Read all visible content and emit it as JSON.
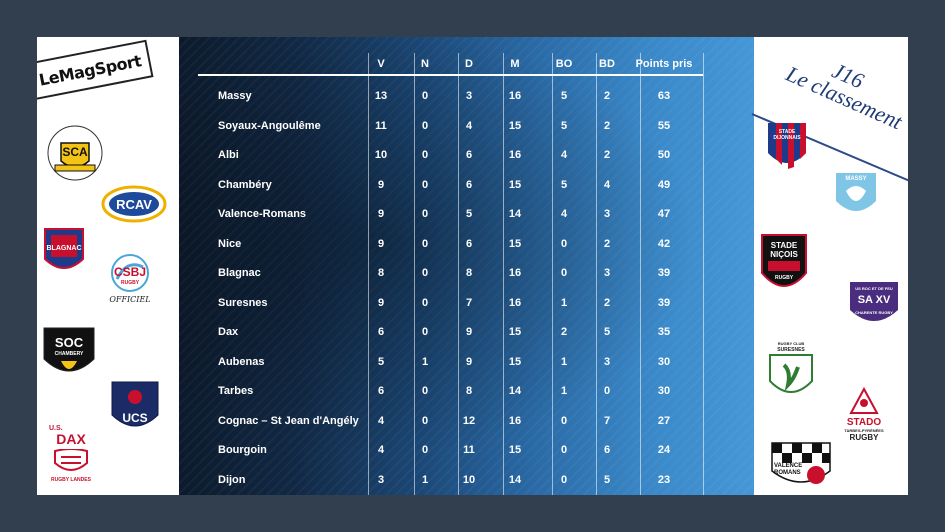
{
  "left_logos": {
    "magsport": "LeMagSport",
    "albi": {
      "ring": "SPORTING CLUB ALBIGEOIS",
      "abbr": "SCA"
    },
    "rcav": "RCAV",
    "blagnac": "BLAGNAC",
    "csbj": {
      "abbr": "CSBJ",
      "sub": "RUGBY",
      "tag": "OFFICIEL"
    },
    "soc": {
      "abbr": "SOC",
      "sub": "CHAMBERY"
    },
    "ucs": "UCS",
    "dax": {
      "top": "U.S.",
      "abbr": "DAX",
      "sub": "RUGBY LANDES"
    }
  },
  "right_header": {
    "round": "J16",
    "title": "Le classement"
  },
  "right_logos": {
    "dijon": {
      "line1": "STADE",
      "line2": "DIJONNAIS"
    },
    "massy": "MASSY",
    "nice": {
      "line1": "STADE",
      "line2": "NIÇOIS",
      "sub": "RUGBY"
    },
    "saxv": {
      "top": "US ROC ET DE FEU",
      "abbr": "SA XV",
      "sub": "CHARENTE RUGBY"
    },
    "suresnes": {
      "top": "RUGBY CLUB",
      "name": "SURESNES"
    },
    "tarbes": {
      "line1": "STADO",
      "line2": "TARBES-PYRÉNÉES",
      "line3": "RUGBY"
    },
    "valence": {
      "line1": "VALENCE",
      "line2": "ROMANS"
    }
  },
  "table": {
    "columns": [
      "V",
      "N",
      "D",
      "M",
      "BO",
      "BD",
      "Points pris"
    ],
    "rows": [
      {
        "team": "Massy",
        "values": [
          "13",
          "0",
          "3",
          "16",
          "5",
          "2",
          "63"
        ]
      },
      {
        "team": "Soyaux-Angoulême",
        "values": [
          "11",
          "0",
          "4",
          "15",
          "5",
          "2",
          "55"
        ]
      },
      {
        "team": "Albi",
        "values": [
          "10",
          "0",
          "6",
          "16",
          "4",
          "2",
          "50"
        ]
      },
      {
        "team": "Chambéry",
        "values": [
          "9",
          "0",
          "6",
          "15",
          "5",
          "4",
          "49"
        ]
      },
      {
        "team": "Valence-Romans",
        "values": [
          "9",
          "0",
          "5",
          "14",
          "4",
          "3",
          "47"
        ]
      },
      {
        "team": "Nice",
        "values": [
          "9",
          "0",
          "6",
          "15",
          "0",
          "2",
          "42"
        ]
      },
      {
        "team": "Blagnac",
        "values": [
          "8",
          "0",
          "8",
          "16",
          "0",
          "3",
          "39"
        ]
      },
      {
        "team": "Suresnes",
        "values": [
          "9",
          "0",
          "7",
          "16",
          "1",
          "2",
          "39"
        ]
      },
      {
        "team": "Dax",
        "values": [
          "6",
          "0",
          "9",
          "15",
          "2",
          "5",
          "35"
        ]
      },
      {
        "team": "Aubenas",
        "values": [
          "5",
          "1",
          "9",
          "15",
          "1",
          "3",
          "30"
        ]
      },
      {
        "team": "Tarbes",
        "values": [
          "6",
          "0",
          "8",
          "14",
          "1",
          "0",
          "30"
        ]
      },
      {
        "team": "Cognac – St Jean d'Angély",
        "values": [
          "4",
          "0",
          "12",
          "16",
          "0",
          "7",
          "27"
        ]
      },
      {
        "team": "Bourgoin",
        "values": [
          "4",
          "0",
          "11",
          "15",
          "0",
          "6",
          "24"
        ]
      },
      {
        "team": "Dijon",
        "values": [
          "3",
          "1",
          "10",
          "14",
          "0",
          "5",
          "23"
        ]
      }
    ]
  }
}
